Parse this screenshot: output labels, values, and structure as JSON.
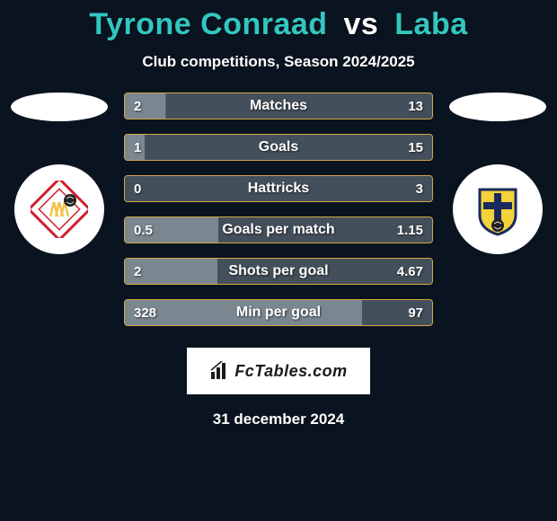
{
  "title": {
    "player1": "Tyrone Conraad",
    "vs": "vs",
    "player2": "Laba",
    "fontsize": 34,
    "player1_color": "#32c6c0",
    "vs_color": "#ffffff",
    "player2_color": "#32c6c0"
  },
  "subtitle": {
    "text": "Club competitions, Season 2024/2025",
    "fontsize": 17
  },
  "colors": {
    "background": "#0a1420",
    "bar_base": "#5b6874",
    "bar_border": "#d6a44a",
    "left_fill": "#7a8690",
    "right_fill": "#434f5a",
    "text": "#ffffff"
  },
  "bar_style": {
    "height": 30,
    "gap": 16,
    "border_width": 1,
    "border_radius": 4,
    "label_fontsize": 16,
    "value_fontsize": 15
  },
  "stats": [
    {
      "label": "Matches",
      "left_raw": "2",
      "right_raw": "13",
      "left_pct": 13.3,
      "right_pct": 86.7
    },
    {
      "label": "Goals",
      "left_raw": "1",
      "right_raw": "15",
      "left_pct": 6.3,
      "right_pct": 93.7
    },
    {
      "label": "Hattricks",
      "left_raw": "0",
      "right_raw": "3",
      "left_pct": 0.0,
      "right_pct": 100.0
    },
    {
      "label": "Goals per match",
      "left_raw": "0.5",
      "right_raw": "1.15",
      "left_pct": 30.3,
      "right_pct": 69.7
    },
    {
      "label": "Shots per goal",
      "left_raw": "2",
      "right_raw": "4.67",
      "left_pct": 30.0,
      "right_pct": 70.0
    },
    {
      "label": "Min per goal",
      "left_raw": "328",
      "right_raw": "97",
      "left_pct": 77.2,
      "right_pct": 22.8
    }
  ],
  "branding": {
    "text": "FcTables.com",
    "fontsize": 18
  },
  "date": {
    "text": "31 december 2024",
    "fontsize": 17
  },
  "crests": {
    "left": {
      "bg": "#ffffff",
      "diamond_border": "#d01f2e",
      "inner": "#f4c24a",
      "ball": "#222222"
    },
    "right": {
      "bg": "#ffffff",
      "shield_fill": "#f3d23b",
      "shield_border": "#1a2a5c",
      "cross": "#1a2a5c",
      "ball": "#222222"
    }
  }
}
